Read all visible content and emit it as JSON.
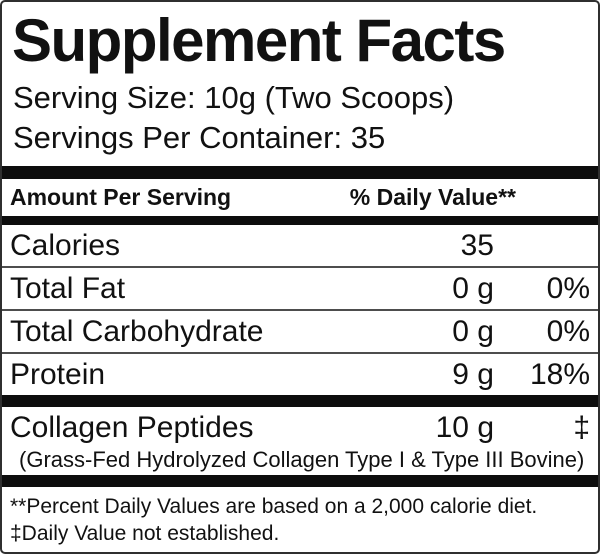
{
  "label": {
    "title": "Supplement Facts",
    "serving_size": "Serving Size: 10g (Two Scoops)",
    "servings_per_container": "Servings Per Container: 35",
    "header": {
      "amount_per_serving": "Amount Per Serving",
      "daily_value": "% Daily Value**"
    },
    "rows": [
      {
        "name": "Calories",
        "amount": "35",
        "dv": ""
      },
      {
        "name": "Total Fat",
        "amount": "0 g",
        "dv": "0%"
      },
      {
        "name": "Total Carbohydrate",
        "amount": "0 g",
        "dv": "0%"
      },
      {
        "name": "Protein",
        "amount": "9 g",
        "dv": "18%"
      }
    ],
    "ingredient": {
      "name": "Collagen Peptides",
      "amount": "10 g",
      "dv": "‡",
      "description": "(Grass-Fed Hydrolyzed Collagen Type I & Type III Bovine)"
    },
    "footnotes": [
      "**Percent Daily Values are based on a 2,000 calorie diet.",
      "‡Daily Value not established."
    ]
  },
  "colors": {
    "text": "#111111",
    "thick_bar": "#0d0d0d",
    "thin_rule": "#4d4d4d",
    "border": "#2f2f2f",
    "background": "#ffffff"
  }
}
